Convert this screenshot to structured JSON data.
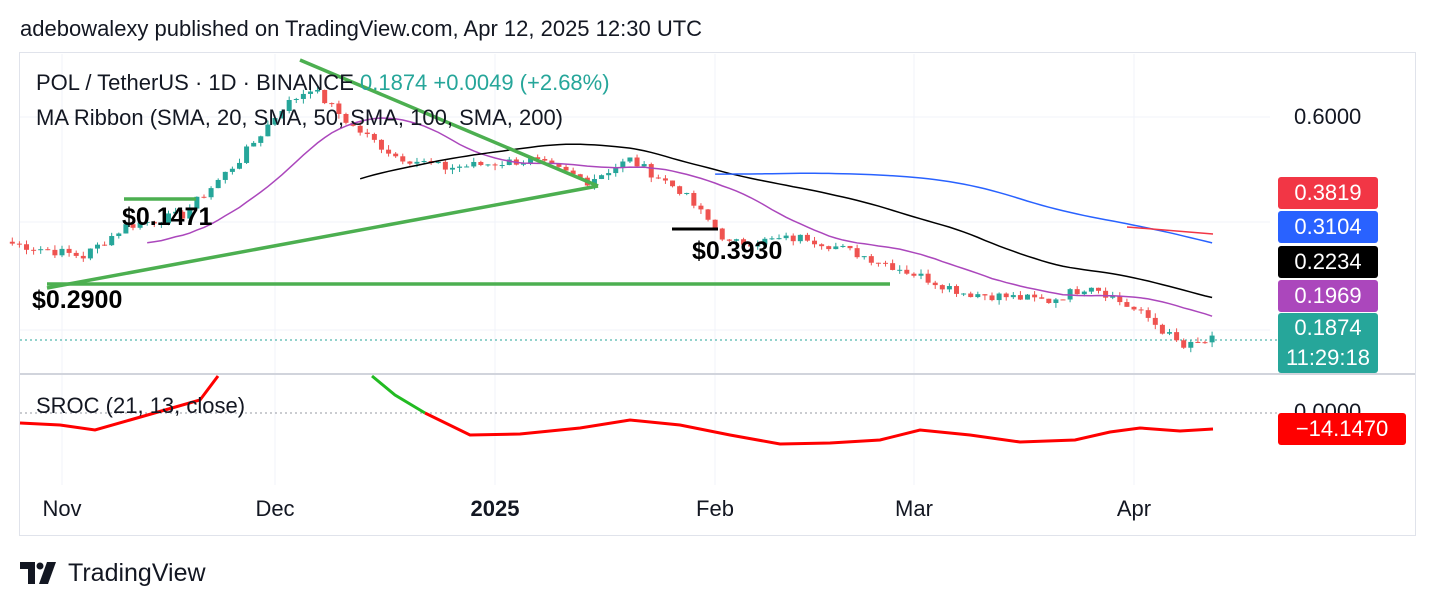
{
  "header": {
    "text": "adebowalexy published on TradingView.com, Apr 12, 2025 12:30 UTC"
  },
  "legend": {
    "symbol": "POL / TetherUS · 1D · BINANCE",
    "price": "0.1874",
    "change": "+0.0049 (+2.68%)",
    "ma_ribbon": "MA Ribbon (SMA, 20, SMA, 50, SMA, 100, SMA, 200)",
    "sroc": "SROC (21, 13, close)"
  },
  "axis": {
    "top_label": "0.6000",
    "zero_label": "0.0000"
  },
  "price_tags": [
    {
      "value": "0.3819",
      "color": "#f23645"
    },
    {
      "value": "0.3104",
      "color": "#2962ff"
    },
    {
      "value": "0.2234",
      "color": "#000000"
    },
    {
      "value": "0.1969",
      "color": "#ab47bc"
    }
  ],
  "last_price": {
    "value": "0.1874",
    "countdown": "11:29:18",
    "color": "#26a69a"
  },
  "sroc_tag": {
    "value": "−14.1470",
    "color": "#ff0000"
  },
  "annotations": {
    "a1": "$0.1471",
    "a2": "$0.3930",
    "a3": "$0.2900"
  },
  "x_ticks": [
    {
      "label": "Nov",
      "bold": false
    },
    {
      "label": "Dec",
      "bold": false
    },
    {
      "label": "2025",
      "bold": true
    },
    {
      "label": "Feb",
      "bold": false
    },
    {
      "label": "Mar",
      "bold": false
    },
    {
      "label": "Apr",
      "bold": false
    }
  ],
  "footer": {
    "brand": "TradingView"
  },
  "colors": {
    "up": "#26a69a",
    "down": "#ef5350",
    "sma20": "#ab47bc",
    "sma50": "#000000",
    "sma100": "#2962ff",
    "sma200": "#f23645",
    "trendline": "#4caf50"
  },
  "chart_data": {
    "type": "candlestick",
    "symbol": "POL / TetherUS",
    "interval": "1D",
    "exchange": "BINANCE",
    "last_close": 0.1874,
    "x_ticks": [
      "Nov",
      "Dec",
      "2025",
      "Feb",
      "Mar",
      "Apr"
    ],
    "close_path": [
      {
        "date": "2024-10-25",
        "close": 0.31
      },
      {
        "date": "2024-11-04",
        "close": 0.29
      },
      {
        "date": "2024-11-10",
        "close": 0.34
      },
      {
        "date": "2024-11-18",
        "close": 0.36
      },
      {
        "date": "2024-11-26",
        "close": 0.48
      },
      {
        "date": "2024-12-02",
        "close": 0.63
      },
      {
        "date": "2024-12-06",
        "close": 0.7
      },
      {
        "date": "2024-12-12",
        "close": 0.57
      },
      {
        "date": "2024-12-18",
        "close": 0.49
      },
      {
        "date": "2024-12-25",
        "close": 0.46
      },
      {
        "date": "2025-01-06",
        "close": 0.48
      },
      {
        "date": "2025-01-14",
        "close": 0.43
      },
      {
        "date": "2025-01-20",
        "close": 0.48
      },
      {
        "date": "2025-01-27",
        "close": 0.41
      },
      {
        "date": "2025-02-03",
        "close": 0.31
      },
      {
        "date": "2025-02-14",
        "close": 0.32
      },
      {
        "date": "2025-02-25",
        "close": 0.28
      },
      {
        "date": "2025-03-08",
        "close": 0.24
      },
      {
        "date": "2025-03-20",
        "close": 0.23
      },
      {
        "date": "2025-03-26",
        "close": 0.25
      },
      {
        "date": "2025-04-03",
        "close": 0.21
      },
      {
        "date": "2025-04-08",
        "close": 0.18
      },
      {
        "date": "2025-04-12",
        "close": 0.1874
      }
    ],
    "moving_averages_last": [
      {
        "name": "SMA 20",
        "value": 0.1969
      },
      {
        "name": "SMA 50",
        "value": 0.2234
      },
      {
        "name": "SMA 100",
        "value": 0.3104
      },
      {
        "name": "SMA 200",
        "value": 0.3819
      }
    ],
    "annotations": [
      {
        "label": "$0.1471"
      },
      {
        "label": "$0.3930"
      },
      {
        "label": "$0.2900"
      }
    ],
    "indicator": {
      "name": "SROC (21, 13, close)",
      "last": -14.147,
      "zero_line": 0
    }
  }
}
